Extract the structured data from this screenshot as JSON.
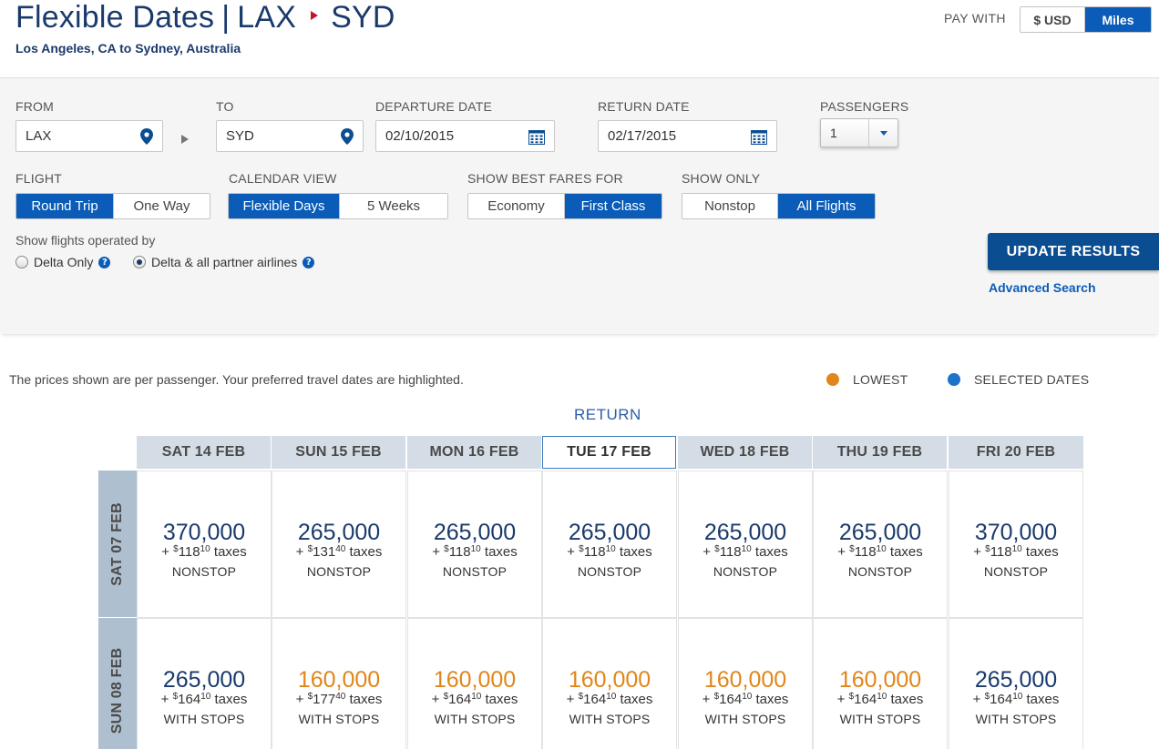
{
  "header": {
    "title_prefix": "Flexible Dates",
    "separator": "|",
    "origin": "LAX",
    "destination": "SYD",
    "subtitle": "Los Angeles, CA to Sydney, Australia",
    "pay_with_label": "PAY WITH",
    "pay_options": [
      "$ USD",
      "Miles"
    ],
    "pay_selected": "Miles"
  },
  "search": {
    "from_label": "FROM",
    "from_value": "LAX",
    "to_label": "TO",
    "to_value": "SYD",
    "departure_label": "DEPARTURE DATE",
    "departure_value": "02/10/2015",
    "return_label": "RETURN DATE",
    "return_value": "02/17/2015",
    "passengers_label": "PASSENGERS",
    "passengers_value": "1",
    "flight_label": "FLIGHT",
    "flight_options": [
      "Round Trip",
      "One Way"
    ],
    "flight_selected": "Round Trip",
    "calendar_label": "CALENDAR VIEW",
    "calendar_options": [
      "Flexible Days",
      "5 Weeks"
    ],
    "calendar_selected": "Flexible Days",
    "fares_label": "SHOW BEST FARES FOR",
    "fares_options": [
      "Economy",
      "First Class"
    ],
    "fares_selected": "First Class",
    "only_label": "SHOW ONLY",
    "only_options": [
      "Nonstop",
      "All Flights"
    ],
    "only_selected": "All Flights",
    "operated_label": "Show flights operated by",
    "operated_options": [
      "Delta Only",
      "Delta & all partner airlines"
    ],
    "operated_selected": "Delta & all partner airlines",
    "update_button": "UPDATE RESULTS",
    "advanced_link": "Advanced Search"
  },
  "results": {
    "note": "The prices shown are per passenger. Your preferred travel dates are highlighted.",
    "legend_lowest": "LOWEST",
    "legend_selected": "SELECTED DATES",
    "lowest_color": "#e0861a",
    "selected_color": "#1d72c9",
    "return_label": "RETURN",
    "return_dates": [
      "SAT 14 FEB",
      "SUN 15 FEB",
      "MON 16 FEB",
      "TUE 17 FEB",
      "WED 18 FEB",
      "THU 19 FEB",
      "FRI 20 FEB"
    ],
    "selected_return": "TUE 17 FEB",
    "rows": [
      {
        "depart": "SAT 07 FEB",
        "cells": [
          {
            "miles": "370,000",
            "tax_prefix": "+ ",
            "tax_dollar": "$",
            "tax_whole": "118",
            "tax_cents": "10",
            "tax_suffix": " taxes",
            "type": "NONSTOP",
            "lowest": false
          },
          {
            "miles": "265,000",
            "tax_prefix": "+ ",
            "tax_dollar": "$",
            "tax_whole": "131",
            "tax_cents": "40",
            "tax_suffix": " taxes",
            "type": "NONSTOP",
            "lowest": false
          },
          {
            "miles": "265,000",
            "tax_prefix": "+ ",
            "tax_dollar": "$",
            "tax_whole": "118",
            "tax_cents": "10",
            "tax_suffix": " taxes",
            "type": "NONSTOP",
            "lowest": false
          },
          {
            "miles": "265,000",
            "tax_prefix": "+ ",
            "tax_dollar": "$",
            "tax_whole": "118",
            "tax_cents": "10",
            "tax_suffix": " taxes",
            "type": "NONSTOP",
            "lowest": false
          },
          {
            "miles": "265,000",
            "tax_prefix": "+ ",
            "tax_dollar": "$",
            "tax_whole": "118",
            "tax_cents": "10",
            "tax_suffix": " taxes",
            "type": "NONSTOP",
            "lowest": false
          },
          {
            "miles": "265,000",
            "tax_prefix": "+ ",
            "tax_dollar": "$",
            "tax_whole": "118",
            "tax_cents": "10",
            "tax_suffix": " taxes",
            "type": "NONSTOP",
            "lowest": false
          },
          {
            "miles": "370,000",
            "tax_prefix": "+ ",
            "tax_dollar": "$",
            "tax_whole": "118",
            "tax_cents": "10",
            "tax_suffix": " taxes",
            "type": "NONSTOP",
            "lowest": false
          }
        ]
      },
      {
        "depart": "SUN 08 FEB",
        "cells": [
          {
            "miles": "265,000",
            "tax_prefix": "+ ",
            "tax_dollar": "$",
            "tax_whole": "164",
            "tax_cents": "10",
            "tax_suffix": " taxes",
            "type": "WITH STOPS",
            "lowest": false
          },
          {
            "miles": "160,000",
            "tax_prefix": "+ ",
            "tax_dollar": "$",
            "tax_whole": "177",
            "tax_cents": "40",
            "tax_suffix": " taxes",
            "type": "WITH STOPS",
            "lowest": true
          },
          {
            "miles": "160,000",
            "tax_prefix": "+ ",
            "tax_dollar": "$",
            "tax_whole": "164",
            "tax_cents": "10",
            "tax_suffix": " taxes",
            "type": "WITH STOPS",
            "lowest": true
          },
          {
            "miles": "160,000",
            "tax_prefix": "+ ",
            "tax_dollar": "$",
            "tax_whole": "164",
            "tax_cents": "10",
            "tax_suffix": " taxes",
            "type": "WITH STOPS",
            "lowest": true
          },
          {
            "miles": "160,000",
            "tax_prefix": "+ ",
            "tax_dollar": "$",
            "tax_whole": "164",
            "tax_cents": "10",
            "tax_suffix": " taxes",
            "type": "WITH STOPS",
            "lowest": true
          },
          {
            "miles": "160,000",
            "tax_prefix": "+ ",
            "tax_dollar": "$",
            "tax_whole": "164",
            "tax_cents": "10",
            "tax_suffix": " taxes",
            "type": "WITH STOPS",
            "lowest": true
          },
          {
            "miles": "265,000",
            "tax_prefix": "+ ",
            "tax_dollar": "$",
            "tax_whole": "164",
            "tax_cents": "10",
            "tax_suffix": " taxes",
            "type": "WITH STOPS",
            "lowest": false
          }
        ]
      }
    ]
  }
}
